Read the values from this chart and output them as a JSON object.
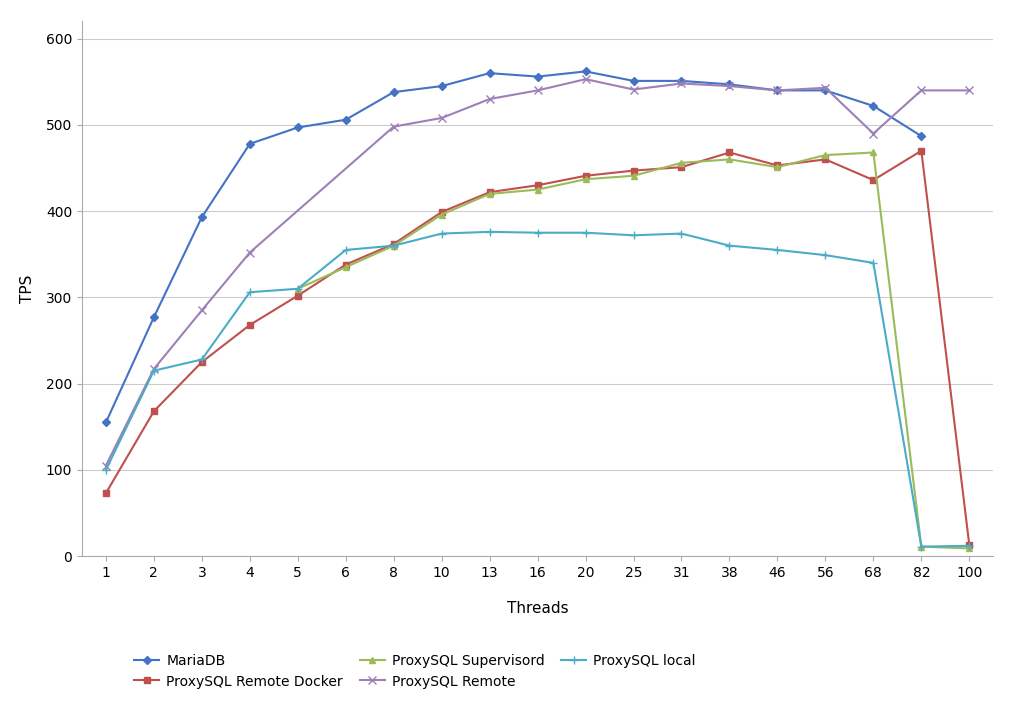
{
  "x_labels": [
    1,
    2,
    3,
    4,
    5,
    6,
    8,
    10,
    13,
    16,
    20,
    25,
    31,
    38,
    46,
    56,
    68,
    82,
    100
  ],
  "series": {
    "MariaDB": {
      "color": "#4472C4",
      "marker": "D",
      "markersize": 4,
      "linewidth": 1.5,
      "values": [
        155,
        277,
        393,
        478,
        497,
        506,
        538,
        545,
        560,
        556,
        562,
        551,
        551,
        547,
        540,
        540,
        522,
        487,
        null
      ]
    },
    "ProxySQL Remote Docker": {
      "color": "#C0504D",
      "marker": "s",
      "markersize": 4,
      "linewidth": 1.5,
      "values": [
        73,
        168,
        225,
        268,
        302,
        338,
        362,
        399,
        422,
        430,
        441,
        447,
        451,
        468,
        453,
        460,
        436,
        470,
        13
      ]
    },
    "ProxySQL Supervisord": {
      "color": "#9BBB59",
      "marker": "^",
      "markersize": 5,
      "linewidth": 1.5,
      "values": [
        null,
        null,
        null,
        null,
        310,
        335,
        360,
        396,
        420,
        425,
        437,
        441,
        456,
        460,
        451,
        465,
        468,
        11,
        9
      ]
    },
    "ProxySQL Remote": {
      "color": "#9E80B7",
      "marker": "x",
      "markersize": 6,
      "linewidth": 1.5,
      "values": [
        105,
        217,
        285,
        352,
        null,
        null,
        498,
        508,
        530,
        540,
        553,
        541,
        548,
        545,
        540,
        543,
        490,
        540,
        540
      ]
    },
    "ProxySQL local": {
      "color": "#4BACC6",
      "marker": "+",
      "markersize": 6,
      "linewidth": 1.5,
      "values": [
        100,
        215,
        228,
        306,
        310,
        355,
        360,
        374,
        376,
        375,
        375,
        372,
        374,
        360,
        355,
        349,
        340,
        11,
        12
      ]
    }
  },
  "ylabel": "TPS",
  "xlabel": "Threads",
  "ylim": [
    0,
    620
  ],
  "yticks": [
    0,
    100,
    200,
    300,
    400,
    500,
    600
  ],
  "background_color": "#ffffff",
  "grid_color": "#CCCCCC",
  "legend_order": [
    "MariaDB",
    "ProxySQL Remote Docker",
    "ProxySQL Supervisord",
    "ProxySQL Remote",
    "ProxySQL local"
  ],
  "legend_ncol": 3,
  "figsize": [
    10.24,
    7.13
  ]
}
